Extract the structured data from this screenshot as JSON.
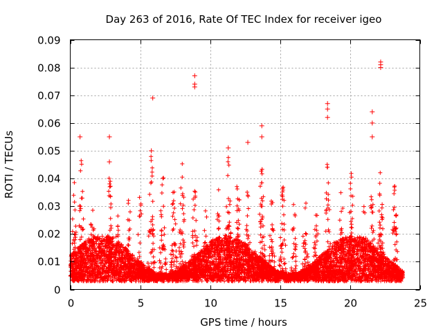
{
  "chart_data": {
    "type": "scatter",
    "title": "Day 263 of 2016, Rate Of TEC Index for receiver igeo",
    "xlabel": "GPS time / hours",
    "ylabel": "ROTI / TECUs",
    "xlim": [
      0,
      25
    ],
    "ylim": [
      0,
      0.09
    ],
    "xticks": [
      0,
      5,
      10,
      15,
      20,
      25
    ],
    "xtick_labels": [
      "0",
      "5",
      "10",
      "15",
      "20",
      "25"
    ],
    "yticks": [
      0,
      0.01,
      0.02,
      0.03,
      0.04,
      0.05,
      0.06,
      0.07,
      0.08,
      0.09
    ],
    "ytick_labels": [
      "0",
      "0.01",
      "0.02",
      "0.03",
      "0.04",
      "0.05",
      "0.06",
      "0.07",
      "0.08",
      "0.09"
    ],
    "grid": true,
    "marker": "+",
    "color": "#ff0000",
    "series": [
      {
        "name": "ROTI",
        "description": "dense scatter of ROTI samples from 0 to ~23.8 h, bulk 0.003-0.02 TECU/min with spikes",
        "notable_points": [
          {
            "x": 0.7,
            "y": 0.055
          },
          {
            "x": 2.8,
            "y": 0.055
          },
          {
            "x": 2.8,
            "y": 0.046
          },
          {
            "x": 5.9,
            "y": 0.069
          },
          {
            "x": 5.8,
            "y": 0.05
          },
          {
            "x": 8.9,
            "y": 0.077
          },
          {
            "x": 8.9,
            "y": 0.074
          },
          {
            "x": 8.9,
            "y": 0.073
          },
          {
            "x": 11.3,
            "y": 0.051
          },
          {
            "x": 12.7,
            "y": 0.053
          },
          {
            "x": 13.7,
            "y": 0.059
          },
          {
            "x": 13.7,
            "y": 0.055
          },
          {
            "x": 18.4,
            "y": 0.067
          },
          {
            "x": 18.4,
            "y": 0.065
          },
          {
            "x": 18.4,
            "y": 0.062
          },
          {
            "x": 21.6,
            "y": 0.064
          },
          {
            "x": 21.6,
            "y": 0.06
          },
          {
            "x": 21.6,
            "y": 0.055
          },
          {
            "x": 22.2,
            "y": 0.082
          },
          {
            "x": 22.2,
            "y": 0.081
          },
          {
            "x": 22.2,
            "y": 0.08
          }
        ],
        "burst_centers_hours": [
          0.3,
          0.8,
          1.6,
          2.8,
          3.4,
          4.2,
          5.0,
          5.8,
          6.6,
          7.4,
          8.0,
          8.9,
          9.7,
          10.6,
          11.3,
          12.0,
          12.7,
          13.7,
          14.4,
          15.2,
          16.0,
          16.8,
          17.6,
          18.4,
          19.4,
          20.1,
          21.0,
          21.6,
          22.2,
          23.2
        ],
        "burst_peaks": [
          0.04,
          0.048,
          0.038,
          0.046,
          0.028,
          0.034,
          0.036,
          0.05,
          0.046,
          0.04,
          0.046,
          0.044,
          0.032,
          0.04,
          0.048,
          0.044,
          0.04,
          0.052,
          0.035,
          0.044,
          0.034,
          0.036,
          0.034,
          0.046,
          0.04,
          0.048,
          0.032,
          0.04,
          0.048,
          0.04
        ],
        "baseline_range": [
          0.003,
          0.02
        ],
        "x_end_hours": 23.8
      }
    ]
  }
}
